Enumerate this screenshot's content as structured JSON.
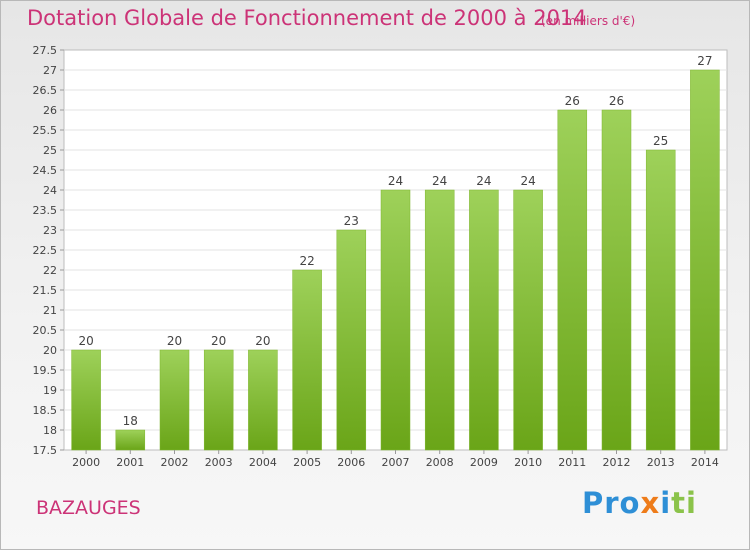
{
  "chart_data": {
    "type": "bar",
    "title": "Dotation Globale de Fonctionnement de 2000 à 2014",
    "subtitle": "(en milliers d'€)",
    "categories": [
      "2000",
      "2001",
      "2002",
      "2003",
      "2004",
      "2005",
      "2006",
      "2007",
      "2008",
      "2009",
      "2010",
      "2011",
      "2012",
      "2013",
      "2014"
    ],
    "values": [
      20,
      18,
      20,
      20,
      20,
      22,
      23,
      24,
      24,
      24,
      24,
      26,
      26,
      25,
      27
    ],
    "value_labels": [
      "20",
      "18",
      "20",
      "20",
      "20",
      "22",
      "23",
      "24",
      "24",
      "24",
      "24",
      "26",
      "26",
      "25",
      "27"
    ],
    "ylim": [
      17.5,
      27.5
    ],
    "yticks": [
      "17.5",
      "18",
      "18.5",
      "19",
      "19.5",
      "20",
      "20.5",
      "21",
      "21.5",
      "22",
      "22.5",
      "23",
      "23.5",
      "24",
      "24.5",
      "25",
      "25.5",
      "26",
      "26.5",
      "27",
      "27.5"
    ],
    "grid": true,
    "bar_color": "#8cc63f"
  },
  "footer": {
    "commune": "BAZAUGES",
    "logo": "Proxiti"
  }
}
